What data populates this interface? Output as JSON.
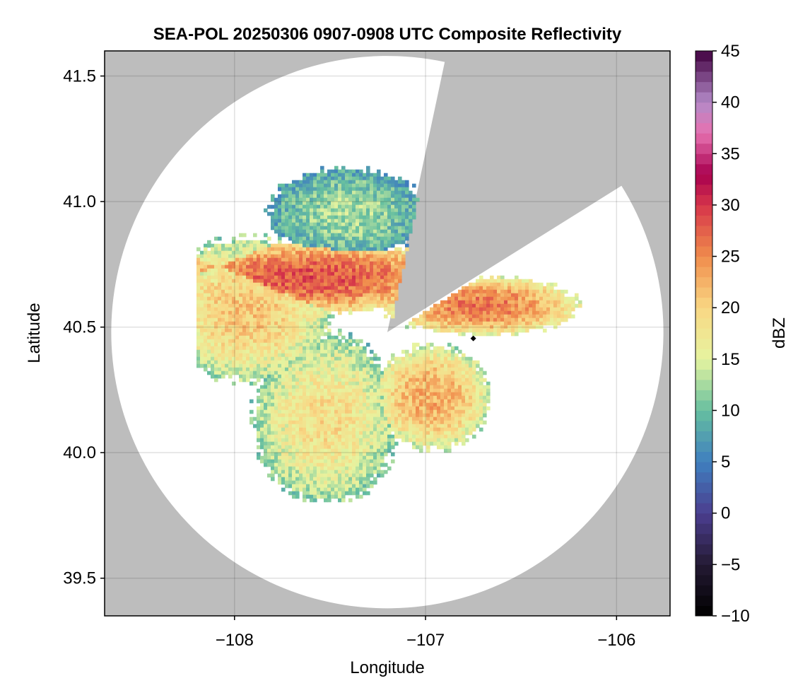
{
  "chart_data": {
    "type": "heatmap",
    "title": "SEA-POL 20250306 0907-0908 UTC Composite Reflectivity",
    "xlabel": "Longitude",
    "ylabel": "Latitude",
    "xlim": [
      -108.68,
      -105.72
    ],
    "ylim": [
      39.35,
      41.6
    ],
    "xticks": [
      -108,
      -107,
      -106
    ],
    "xtick_labels": [
      "−108",
      "−107",
      "−106"
    ],
    "yticks": [
      39.5,
      40.0,
      40.5,
      41.0,
      41.5
    ],
    "ytick_labels": [
      "39.5",
      "40.0",
      "40.5",
      "41.0",
      "41.5"
    ],
    "grid": true,
    "colorbar": {
      "label": "dBZ",
      "range": [
        -10,
        45
      ],
      "ticks": [
        -10,
        -5,
        0,
        5,
        10,
        15,
        20,
        25,
        30,
        35,
        40,
        45
      ],
      "tick_labels": [
        "−10",
        "−5",
        "0",
        "5",
        "10",
        "15",
        "20",
        "25",
        "30",
        "35",
        "40",
        "45"
      ],
      "colormap": "spectral-like",
      "stops": [
        [
          -10,
          "#000000"
        ],
        [
          -5,
          "#241a33"
        ],
        [
          0,
          "#4b3e8f"
        ],
        [
          5,
          "#3f7fbf"
        ],
        [
          10,
          "#66bfa0"
        ],
        [
          15,
          "#e6f4a0"
        ],
        [
          20,
          "#f9d784"
        ],
        [
          25,
          "#f08c4c"
        ],
        [
          30,
          "#d6354a"
        ],
        [
          33,
          "#a8004f"
        ],
        [
          37,
          "#e671b0"
        ],
        [
          40,
          "#b48ac8"
        ],
        [
          45,
          "#40003f"
        ]
      ]
    },
    "radar": {
      "center_lon": -107.2,
      "center_lat": 40.48,
      "coverage_radius_deg_lat": 1.1,
      "blocked_sectors_bearing_deg": [
        [
          12,
          58
        ]
      ]
    },
    "marker": {
      "lon": -106.75,
      "lat": 40.455,
      "shape": "diamond",
      "color": "#000000"
    },
    "background_color": "#bdbdbd",
    "coverage_color": "#ffffff"
  }
}
